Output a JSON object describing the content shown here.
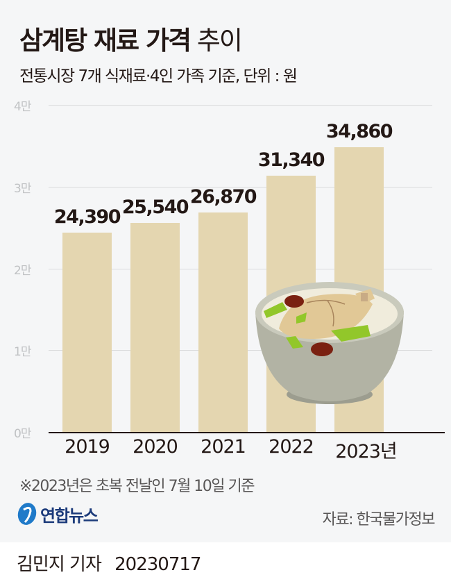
{
  "header": {
    "title_bold": "삼계탕 재료 가격",
    "title_light": "추이",
    "subtitle": "전통시장 7개 식재료·4인 가족 기준, 단위 : 원"
  },
  "chart_data": {
    "type": "bar",
    "title": "삼계탕 재료 가격 추이",
    "subtitle": "전통시장 7개 식재료·4인 가족 기준, 단위 : 원",
    "categories": [
      "2019",
      "2020",
      "2021",
      "2022",
      "2023년"
    ],
    "values": [
      24390,
      25540,
      26870,
      31340,
      34860
    ],
    "value_labels": [
      "24,390",
      "25,540",
      "26,870",
      "31,340",
      "34,860"
    ],
    "xlabel": "",
    "ylabel": "원",
    "ylim": [
      0,
      40000
    ],
    "yticks": [
      "0만",
      "1만",
      "2만",
      "3만",
      "4만"
    ],
    "grid": true,
    "bar_color": "#e4d6b0"
  },
  "footer": {
    "note": "※2023년은 초복 전날인 7월 10일 기준",
    "logo_text": "연합뉴스",
    "source": "자료: 한국물가정보",
    "reporter": "김민지 기자",
    "date": "20230717"
  },
  "colors": {
    "background": "#f5f6f7",
    "text": "#231815",
    "bar": "#e4d6b0",
    "grid": "#d9dadc",
    "logo_blue": "#1f7ac9"
  }
}
